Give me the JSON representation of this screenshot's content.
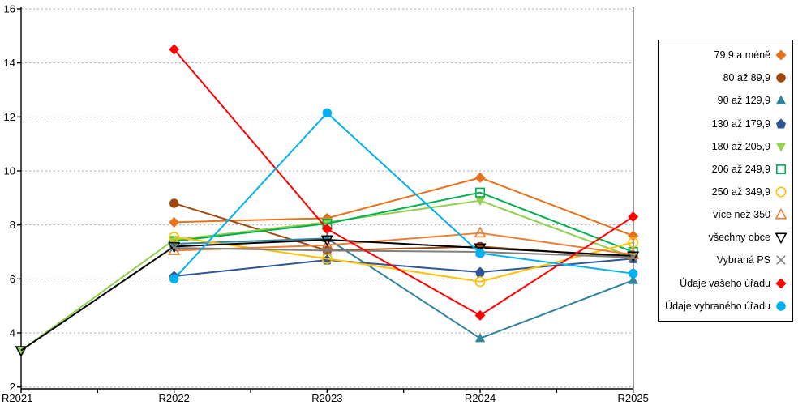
{
  "chart_data": {
    "type": "line",
    "title": "",
    "xlabel": "",
    "ylabel": "",
    "categories": [
      "R2021",
      "R2022",
      "R2023",
      "R2024",
      "R2025"
    ],
    "y_axis": {
      "min": 2,
      "max": 16,
      "step": 2,
      "ticks": [
        2,
        4,
        6,
        8,
        10,
        12,
        14,
        16
      ]
    },
    "grid": "horizontal-dotted",
    "legend_position": "right",
    "series": [
      {
        "name": "79,9 a méně",
        "color": "#E8711A",
        "marker": "diamond",
        "values": [
          null,
          8.1,
          8.25,
          9.75,
          7.6
        ]
      },
      {
        "name": "80 až 89,9",
        "color": "#9E480E",
        "marker": "circle",
        "values": [
          null,
          8.8,
          7.05,
          7.2,
          6.8
        ]
      },
      {
        "name": "90 až 129,9",
        "color": "#31849B",
        "marker": "triangle-up",
        "values": [
          null,
          7.3,
          7.5,
          3.8,
          5.95
        ]
      },
      {
        "name": "130 až 179,9",
        "color": "#2F5597",
        "marker": "pentagon",
        "values": [
          null,
          6.1,
          6.7,
          6.25,
          6.75
        ]
      },
      {
        "name": "180 až 205,9",
        "color": "#92D050",
        "marker": "triangle-down",
        "values": [
          3.35,
          7.45,
          8.1,
          8.9,
          6.8
        ]
      },
      {
        "name": "206 až 249,9",
        "color": "#00B050",
        "marker": "square-open",
        "values": [
          null,
          7.4,
          8.05,
          9.2,
          7.0
        ]
      },
      {
        "name": "250 až 349,9",
        "color": "#FFC000",
        "marker": "circle-open",
        "values": [
          null,
          7.55,
          6.75,
          5.9,
          7.35
        ]
      },
      {
        "name": "více než 350",
        "color": "#ED7D31",
        "marker": "triangle-up-open",
        "values": [
          null,
          7.05,
          7.25,
          7.7,
          6.9
        ]
      },
      {
        "name": "všechny obce",
        "color": "#000000",
        "marker": "triangle-down-open",
        "values": [
          3.35,
          7.2,
          7.45,
          7.15,
          6.85
        ]
      },
      {
        "name": "Vybraná PS",
        "color": "#7F7F7F",
        "marker": "x-cross",
        "values": [
          null,
          7.15,
          7.05,
          7.0,
          6.8
        ]
      },
      {
        "name": "Údaje vašeho úřadu",
        "color": "#FF0000",
        "marker": "diamond",
        "values": [
          null,
          14.5,
          7.85,
          4.65,
          8.3
        ]
      },
      {
        "name": "Údaje vybraného úřadu",
        "color": "#00B0F0",
        "marker": "circle",
        "values": [
          null,
          6.0,
          12.15,
          6.95,
          6.2
        ]
      }
    ]
  },
  "colors": {
    "grid": "#ABABAB",
    "axis": "#000000",
    "background": "#FFFFFF"
  }
}
